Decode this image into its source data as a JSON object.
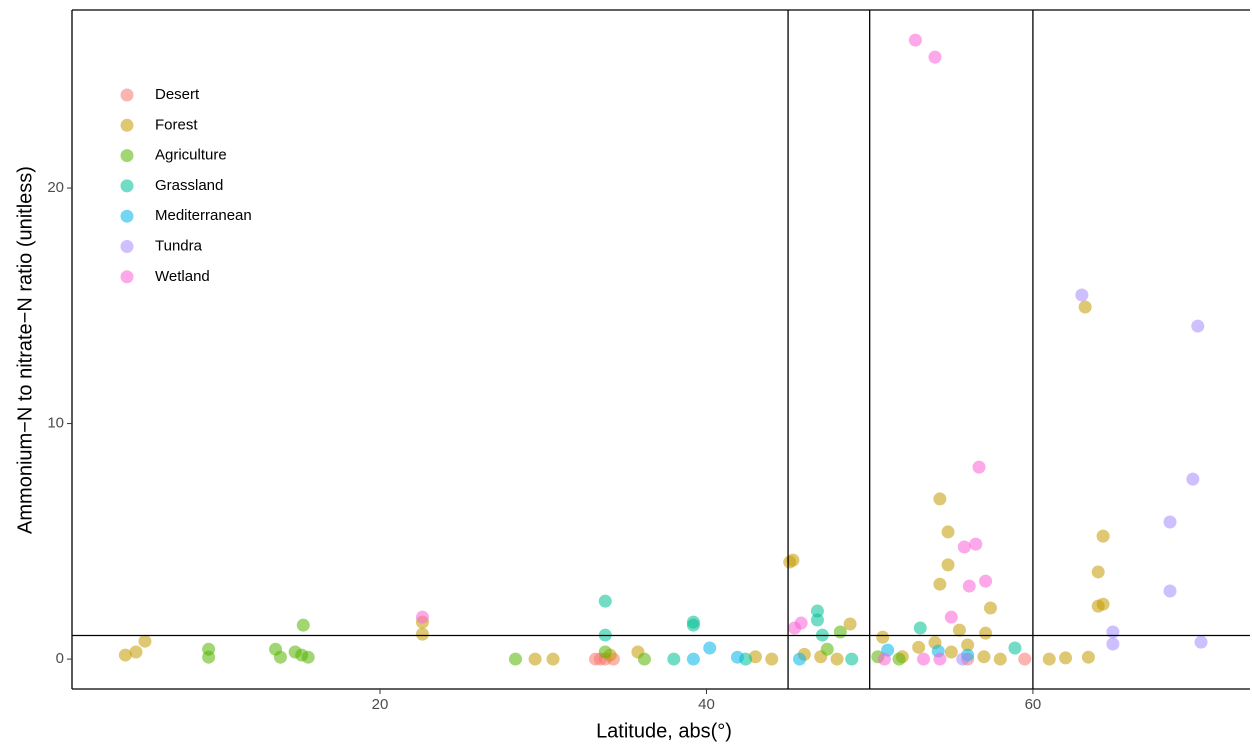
{
  "chart_data": {
    "type": "scatter",
    "x_label": "Latitude, abs(°)",
    "y_label": "Ammonium−N to nitrate−N ratio (unitless)",
    "xlim": [
      1.13,
      73.3
    ],
    "ylim": [
      -1.27,
      27.56
    ],
    "xticks": [
      20,
      40,
      60
    ],
    "yticks": [
      0,
      10,
      20
    ],
    "vlines": [
      45,
      50,
      60
    ],
    "hline": 1,
    "legend": "top-left",
    "series": [
      {
        "name": "Desert",
        "color": "#F8766D",
        "x": [
          33.2,
          33.5,
          33.8,
          34.3,
          56.0,
          59.5
        ],
        "y": [
          0,
          0,
          0,
          0,
          0,
          0
        ]
      },
      {
        "name": "Forest",
        "color": "#C49A00",
        "x": [
          4.4,
          5.05,
          5.6,
          22.6,
          22.6,
          29.5,
          30.6,
          34.1,
          35.8,
          45.1,
          45.3,
          48.8,
          50.8,
          54.3,
          54.8,
          54.8,
          54.3,
          55.5,
          57.4,
          57.1,
          63.2,
          64.3,
          64.0,
          64.3,
          64.0,
          63.4,
          43,
          44,
          46,
          47,
          48,
          52,
          53,
          54,
          55,
          56,
          57,
          58,
          61,
          62
        ],
        "y": [
          0.17,
          0.3,
          0.76,
          1.57,
          1.06,
          0,
          0,
          0.17,
          0.3,
          4.12,
          4.2,
          1.49,
          0.93,
          6.8,
          5.4,
          4.0,
          3.18,
          1.23,
          2.17,
          1.1,
          14.95,
          5.22,
          3.7,
          2.33,
          2.25,
          0.08,
          0.1,
          0,
          0.2,
          0.1,
          0,
          0.1,
          0.5,
          0.7,
          0.3,
          0.6,
          0.1,
          0,
          0,
          0.05
        ]
      },
      {
        "name": "Agriculture",
        "color": "#53B400",
        "x": [
          9.5,
          9.5,
          13.6,
          13.9,
          14.8,
          15.2,
          15.6,
          15.3,
          28.3,
          33.8,
          36.2,
          48.2,
          47.4,
          50.5,
          51.8
        ],
        "y": [
          0.42,
          0.08,
          0.42,
          0.08,
          0.3,
          0.17,
          0.08,
          1.44,
          0,
          0.3,
          0,
          1.15,
          0.42,
          0.1,
          0
        ]
      },
      {
        "name": "Grassland",
        "color": "#00C094",
        "x": [
          33.8,
          33.8,
          39.2,
          39.2,
          38.0,
          46.8,
          46.8,
          47.1,
          53.1,
          58.9,
          42.4,
          48.9
        ],
        "y": [
          2.46,
          1.02,
          1.57,
          1.44,
          0,
          2.04,
          1.66,
          1.02,
          1.32,
          0.47,
          0,
          0
        ]
      },
      {
        "name": "Mediterranean",
        "color": "#00B6EB",
        "x": [
          40.2,
          39.2,
          41.9,
          45.7,
          51.1,
          54.2,
          56.0
        ],
        "y": [
          0.47,
          0,
          0.08,
          0,
          0.38,
          0.34,
          0.17
        ]
      },
      {
        "name": "Tundra",
        "color": "#A58AFF",
        "x": [
          63.0,
          70.1,
          69.8,
          68.4,
          68.4,
          64.9,
          64.9,
          70.3,
          55.7
        ],
        "y": [
          15.46,
          14.14,
          7.64,
          5.82,
          2.89,
          1.15,
          0.64,
          0.72,
          0
        ]
      },
      {
        "name": "Wetland",
        "color": "#FB61D7",
        "x": [
          52.8,
          54.0,
          56.7,
          56.5,
          55.8,
          56.1,
          57.1,
          55.0,
          22.6,
          45.8,
          45.4,
          53.3,
          50.9,
          54.3
        ],
        "y": [
          26.28,
          25.56,
          8.15,
          4.88,
          4.76,
          3.1,
          3.31,
          1.78,
          1.78,
          1.53,
          1.32,
          0,
          0,
          0
        ]
      }
    ]
  }
}
